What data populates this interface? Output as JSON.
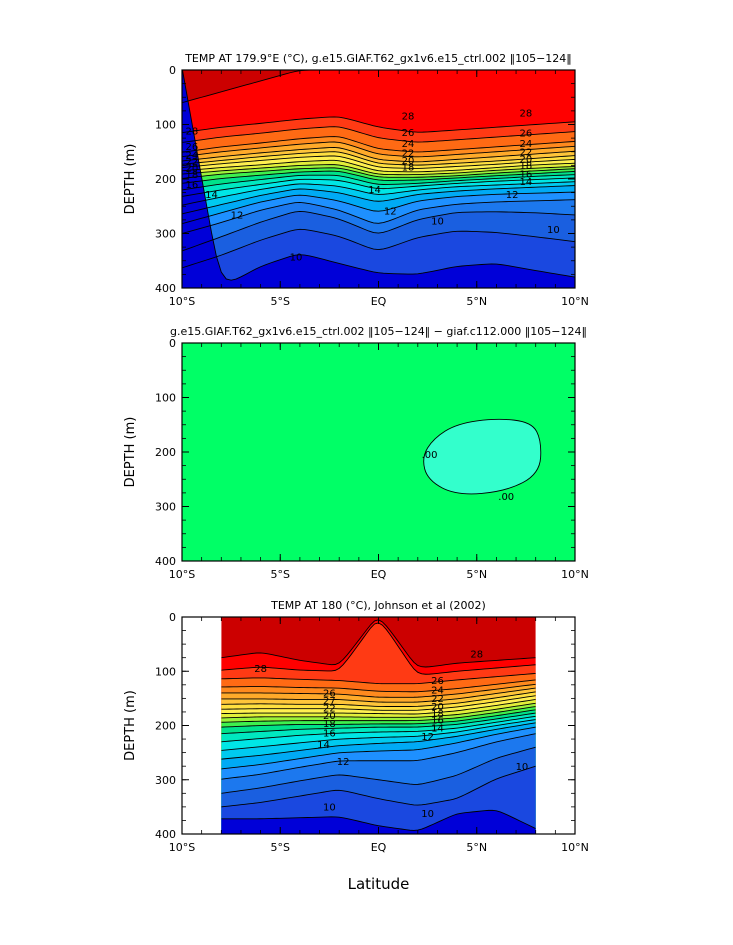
{
  "figure": {
    "xlabel": "Latitude"
  },
  "chart_data": [
    {
      "type": "contour",
      "title": "TEMP AT 179.9°E (°C), g.e15.GIAF.T62_gx1v6.e15_ctrl.002 ‖105−124‖",
      "ylabel": "DEPTH  (m)",
      "xlim": [
        -10,
        10
      ],
      "ylim": [
        400,
        0
      ],
      "x_ticks": [
        -10,
        -5,
        0,
        5,
        10
      ],
      "x_tick_labels": [
        "10°S",
        "5°S",
        "EQ",
        "5°N",
        "10°N"
      ],
      "y_ticks": [
        0,
        100,
        200,
        300,
        400
      ],
      "y_tick_labels": [
        "0",
        "100",
        "200",
        "300",
        "400"
      ],
      "data_extent": [
        -10,
        10
      ],
      "x": [
        -10,
        -8,
        -6,
        -4,
        -2,
        0,
        2,
        4,
        6,
        8,
        10
      ],
      "levels": [
        29,
        28,
        27,
        26,
        25,
        24,
        23,
        22,
        21,
        20,
        19,
        18,
        17,
        16,
        15,
        14,
        13,
        12,
        11,
        10,
        9
      ],
      "isotherm_depths": [
        [
          60,
          40,
          20,
          0,
          0,
          null,
          null,
          null,
          null,
          null,
          null
        ],
        [
          115,
          105,
          98,
          90,
          85,
          105,
          115,
          110,
          105,
          100,
          95
        ],
        [
          133,
          123,
          116,
          108,
          103,
          125,
          133,
          128,
          123,
          118,
          113
        ],
        [
          151,
          141,
          134,
          126,
          121,
          145,
          151,
          146,
          141,
          136,
          131
        ],
        [
          159,
          150,
          143,
          136,
          131,
          155,
          160,
          155,
          150,
          145,
          140
        ],
        [
          167,
          159,
          152,
          146,
          141,
          165,
          169,
          164,
          159,
          154,
          149
        ],
        [
          173,
          166,
          159,
          153,
          149,
          172,
          175,
          171,
          167,
          162,
          157
        ],
        [
          179,
          172,
          166,
          160,
          157,
          179,
          181,
          177,
          173,
          168,
          164
        ],
        [
          185,
          179,
          174,
          168,
          165,
          186,
          187,
          184,
          179,
          174,
          171
        ],
        [
          191,
          185,
          180,
          175,
          173,
          192,
          192,
          189,
          184,
          180,
          177
        ],
        [
          199,
          191,
          186,
          181,
          179,
          197,
          197,
          194,
          189,
          185,
          181
        ],
        [
          208,
          199,
          193,
          187,
          185,
          203,
          202,
          198,
          194,
          190,
          186
        ],
        [
          220,
          209,
          201,
          193,
          193,
          211,
          208,
          203,
          199,
          195,
          192
        ],
        [
          232,
          220,
          210,
          200,
          202,
          219,
          213,
          208,
          204,
          201,
          198
        ],
        [
          248,
          233,
          219,
          208,
          213,
          230,
          220,
          214,
          211,
          208,
          205
        ],
        [
          264,
          247,
          230,
          217,
          225,
          243,
          228,
          222,
          218,
          215,
          212
        ],
        [
          282,
          262,
          242,
          228,
          240,
          262,
          240,
          232,
          228,
          226,
          224
        ],
        [
          300,
          280,
          257,
          241,
          257,
          285,
          256,
          246,
          242,
          240,
          238
        ],
        [
          332,
          306,
          279,
          257,
          273,
          303,
          274,
          261,
          260,
          262,
          266
        ],
        [
          363,
          340,
          312,
          290,
          305,
          333,
          307,
          295,
          298,
          306,
          315
        ],
        [
          null,
          400,
          360,
          336,
          355,
          373,
          375,
          360,
          355,
          368,
          380
        ]
      ],
      "contour_labels": [
        {
          "text": "28",
          "x": 1.5,
          "y": 84
        },
        {
          "text": "28",
          "x": 7.5,
          "y": 79
        },
        {
          "text": "28",
          "x": -9.5,
          "y": 112
        },
        {
          "text": "26",
          "x": -9.5,
          "y": 140
        },
        {
          "text": "26",
          "x": 1.5,
          "y": 115
        },
        {
          "text": "26",
          "x": 7.5,
          "y": 116
        },
        {
          "text": "24",
          "x": -9.5,
          "y": 156
        },
        {
          "text": "24",
          "x": 1.5,
          "y": 135
        },
        {
          "text": "24",
          "x": 7.5,
          "y": 135
        },
        {
          "text": "22",
          "x": -9.5,
          "y": 168
        },
        {
          "text": "22",
          "x": 1.5,
          "y": 152
        },
        {
          "text": "22",
          "x": 7.5,
          "y": 150
        },
        {
          "text": "20",
          "x": -9.5,
          "y": 180
        },
        {
          "text": "20",
          "x": 1.5,
          "y": 166
        },
        {
          "text": "20",
          "x": 7.5,
          "y": 163
        },
        {
          "text": "18",
          "x": -9.5,
          "y": 192
        },
        {
          "text": "18",
          "x": 1.5,
          "y": 178
        },
        {
          "text": "18",
          "x": 7.5,
          "y": 175
        },
        {
          "text": "16",
          "x": -9.5,
          "y": 210
        },
        {
          "text": "16",
          "x": 7.5,
          "y": 191
        },
        {
          "text": "14",
          "x": -8.5,
          "y": 228
        },
        {
          "text": "14",
          "x": -0.2,
          "y": 219
        },
        {
          "text": "14",
          "x": 7.5,
          "y": 205
        },
        {
          "text": "12",
          "x": -7.2,
          "y": 266
        },
        {
          "text": "12",
          "x": 0.6,
          "y": 259
        },
        {
          "text": "12",
          "x": 6.8,
          "y": 228
        },
        {
          "text": "10",
          "x": 3,
          "y": 277
        },
        {
          "text": "10",
          "x": 8.9,
          "y": 293
        },
        {
          "text": "10",
          "x": -4.2,
          "y": 343
        }
      ]
    },
    {
      "type": "contour",
      "title": "g.e15.GIAF.T62_gx1v6.e15_ctrl.002 ‖105−124‖ − giaf.c112.000 ‖105−124‖",
      "ylabel": "DEPTH  (m)",
      "xlim": [
        -10,
        10
      ],
      "ylim": [
        400,
        0
      ],
      "x_ticks": [
        -10,
        -5,
        0,
        5,
        10
      ],
      "x_tick_labels": [
        "10°S",
        "5°S",
        "EQ",
        "5°N",
        "10°N"
      ],
      "y_ticks": [
        0,
        100,
        200,
        300,
        400
      ],
      "y_tick_labels": [
        "0",
        "100",
        "200",
        "300",
        "400"
      ],
      "background_level": "0 to positive",
      "region": {
        "level": "negative",
        "outline": [
          [
            2.2,
            210
          ],
          [
            2.8,
            175
          ],
          [
            4,
            148
          ],
          [
            6,
            138
          ],
          [
            7.8,
            145
          ],
          [
            8.3,
            180
          ],
          [
            8.2,
            240
          ],
          [
            6.5,
            272
          ],
          [
            4,
            280
          ],
          [
            2.5,
            252
          ]
        ]
      },
      "contour_labels": [
        {
          "text": ".00",
          "x": 2.6,
          "y": 205
        },
        {
          "text": ".00",
          "x": 6.5,
          "y": 282
        }
      ]
    },
    {
      "type": "contour",
      "title": "TEMP AT 180 (°C), Johnson et al (2002)",
      "ylabel": "DEPTH  (m)",
      "xlim": [
        -10,
        10
      ],
      "ylim": [
        400,
        0
      ],
      "x_ticks": [
        -10,
        -5,
        0,
        5,
        10
      ],
      "x_tick_labels": [
        "10°S",
        "5°S",
        "EQ",
        "5°N",
        "10°N"
      ],
      "y_ticks": [
        0,
        100,
        200,
        300,
        400
      ],
      "y_tick_labels": [
        "0",
        "100",
        "200",
        "300",
        "400"
      ],
      "data_extent": [
        -8,
        8
      ],
      "x": [
        -8,
        -6,
        -4,
        -2,
        0,
        2,
        4,
        6,
        8
      ],
      "levels": [
        29,
        28,
        27,
        26,
        25,
        24,
        23,
        22,
        21,
        20,
        19,
        18,
        17,
        16,
        15,
        14,
        13,
        12,
        11,
        10,
        9
      ],
      "isotherm_depths": [
        [
          75,
          65,
          80,
          90,
          null,
          95,
          85,
          80,
          75
        ],
        [
          98,
          92,
          98,
          100,
          0,
          108,
          100,
          94,
          88
        ],
        [
          114,
          112,
          115,
          117,
          123,
          123,
          116,
          110,
          104
        ],
        [
          129,
          128,
          130,
          131,
          137,
          138,
          132,
          124,
          116
        ],
        [
          140,
          140,
          141,
          142,
          148,
          148,
          142,
          133,
          124
        ],
        [
          151,
          151,
          152,
          152,
          157,
          157,
          151,
          141,
          131
        ],
        [
          161,
          160,
          161,
          161,
          165,
          165,
          159,
          149,
          138
        ],
        [
          170,
          169,
          169,
          169,
          172,
          172,
          166,
          156,
          145
        ],
        [
          178,
          177,
          177,
          177,
          178,
          179,
          173,
          163,
          152
        ],
        [
          186,
          184,
          184,
          184,
          185,
          185,
          180,
          170,
          159
        ],
        [
          194,
          192,
          191,
          191,
          191,
          191,
          186,
          176,
          165
        ],
        [
          203,
          200,
          198,
          198,
          197,
          197,
          192,
          182,
          171
        ],
        [
          215,
          211,
          207,
          205,
          203,
          203,
          198,
          188,
          177
        ],
        [
          230,
          224,
          218,
          214,
          212,
          211,
          205,
          194,
          183
        ],
        [
          246,
          239,
          232,
          225,
          222,
          220,
          212,
          200,
          189
        ],
        [
          262,
          255,
          246,
          237,
          233,
          230,
          220,
          207,
          195
        ],
        [
          280,
          272,
          261,
          250,
          247,
          245,
          232,
          216,
          203
        ],
        [
          299,
          290,
          277,
          265,
          265,
          265,
          250,
          230,
          215
        ],
        [
          325,
          315,
          302,
          290,
          300,
          310,
          292,
          260,
          240
        ],
        [
          350,
          342,
          330,
          318,
          335,
          348,
          335,
          298,
          275
        ],
        [
          372,
          372,
          370,
          368,
          385,
          395,
          362,
          355,
          390
        ]
      ],
      "contour_labels": [
        {
          "text": "28",
          "x": -6,
          "y": 95
        },
        {
          "text": "28",
          "x": 5,
          "y": 68
        },
        {
          "text": "26",
          "x": -2.5,
          "y": 140
        },
        {
          "text": "26",
          "x": 3,
          "y": 117
        },
        {
          "text": "24",
          "x": 3,
          "y": 135
        },
        {
          "text": "22",
          "x": 3,
          "y": 150
        },
        {
          "text": "20",
          "x": 3,
          "y": 165
        },
        {
          "text": "18",
          "x": 3,
          "y": 178
        },
        {
          "text": "16",
          "x": 3,
          "y": 190
        },
        {
          "text": "14",
          "x": 3,
          "y": 205
        },
        {
          "text": "27",
          "x": -2.5,
          "y": 154
        },
        {
          "text": "22",
          "x": -2.5,
          "y": 168
        },
        {
          "text": "20",
          "x": -2.5,
          "y": 182
        },
        {
          "text": "18",
          "x": -2.5,
          "y": 196
        },
        {
          "text": "16",
          "x": -2.5,
          "y": 214
        },
        {
          "text": "14",
          "x": -2.8,
          "y": 235
        },
        {
          "text": "12",
          "x": -1.8,
          "y": 266
        },
        {
          "text": "12",
          "x": 2.5,
          "y": 220
        },
        {
          "text": "10",
          "x": -2.5,
          "y": 350
        },
        {
          "text": "10",
          "x": 2.5,
          "y": 362
        },
        {
          "text": "10",
          "x": 7.3,
          "y": 276
        }
      ]
    }
  ],
  "colors": {
    "temperature_fill": [
      "#cc0000",
      "#ff0000",
      "#ff3a14",
      "#ff6a14",
      "#ff8a1e",
      "#ffaa2a",
      "#ffc53a",
      "#ffe040",
      "#fff050",
      "#e2f03a",
      "#9bf23a",
      "#3ef04e",
      "#00e28a",
      "#00e8c0",
      "#00e6e6",
      "#00caf0",
      "#00aaf5",
      "#1e90ff",
      "#1c78ee",
      "#1a5fe0",
      "#1a48e0",
      "#0000d8"
    ],
    "diff_positive": "#00ff66",
    "diff_negative": "#33ffcc"
  }
}
